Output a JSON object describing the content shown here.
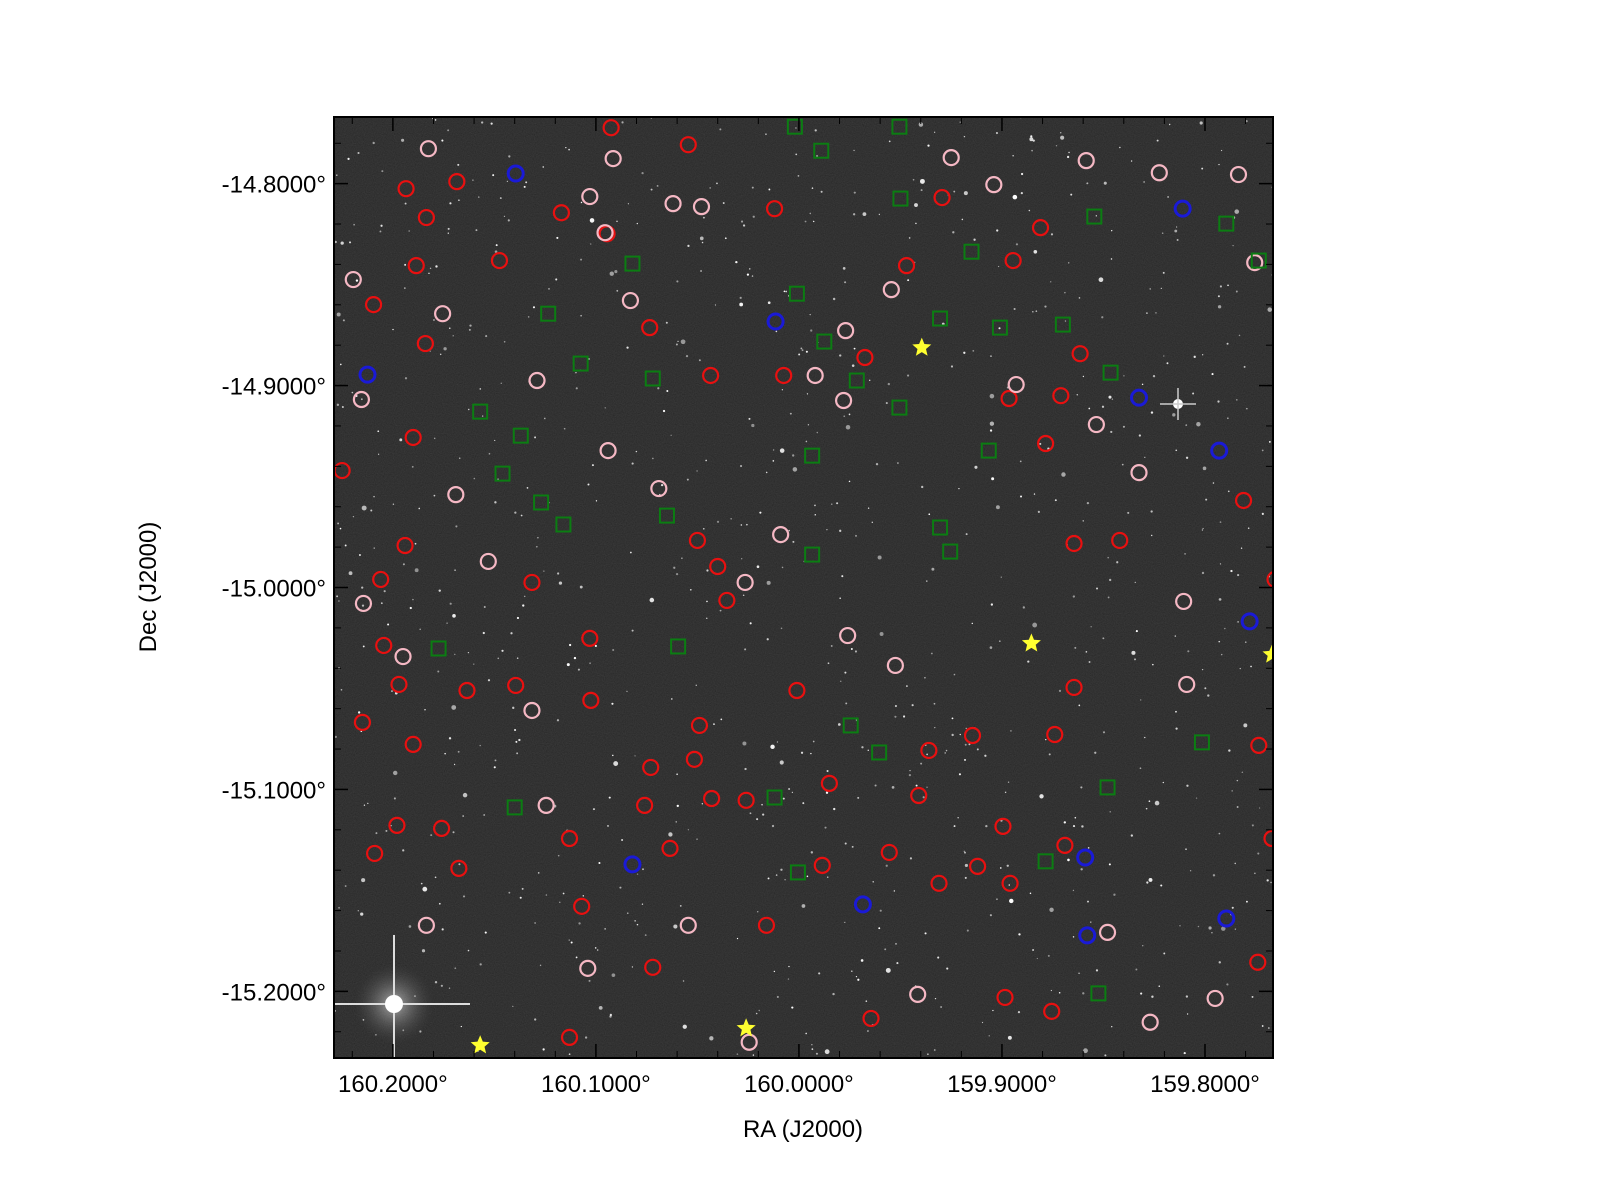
{
  "chart_data": {
    "type": "scatter",
    "xlabel": "RA (J2000)",
    "ylabel": "Dec (J2000)",
    "xlim": [
      160.229,
      159.7665
    ],
    "ylim": [
      -15.233,
      -14.767
    ],
    "xticks": [
      {
        "value": 160.2,
        "label": "160.2000°"
      },
      {
        "value": 160.1,
        "label": "160.1000°"
      },
      {
        "value": 160.0,
        "label": "160.0000°"
      },
      {
        "value": 159.9,
        "label": "159.9000°"
      },
      {
        "value": 159.8,
        "label": "159.8000°"
      }
    ],
    "yticks": [
      {
        "value": -14.8,
        "label": "-14.8000°"
      },
      {
        "value": -14.9,
        "label": "-14.9000°"
      },
      {
        "value": -15.0,
        "label": "-15.0000°"
      },
      {
        "value": -15.1,
        "label": "-15.1000°"
      },
      {
        "value": -15.2,
        "label": "-15.2000°"
      }
    ],
    "xminorticks": [
      160.22,
      160.18,
      160.16,
      160.14,
      160.12,
      160.08,
      160.06,
      160.04,
      160.02,
      159.98,
      159.96,
      159.94,
      159.92,
      159.88,
      159.86,
      159.84,
      159.82,
      159.78
    ],
    "yminorticks": [
      -14.78,
      -14.82,
      -14.84,
      -14.86,
      -14.88,
      -14.92,
      -14.94,
      -14.96,
      -14.98,
      -15.02,
      -15.04,
      -15.06,
      -15.08,
      -15.12,
      -15.14,
      -15.16,
      -15.18,
      -15.22
    ],
    "series": [
      {
        "marker": "circle",
        "color": "#e81010",
        "x": [
          160.1935,
          160.1835,
          160.1685,
          160.1475,
          160.1885,
          160.2095,
          160.184,
          160.19,
          160.225,
          160.194,
          160.206,
          160.2045,
          160.197,
          160.215,
          160.19,
          160.198,
          160.209,
          160.1675,
          160.176,
          160.1635,
          160.1395,
          160.1315,
          160.103,
          160.1025,
          160.113,
          160.107,
          160.113,
          160.0925,
          160.0545,
          160.117,
          160.0945,
          160.0735,
          160.0435,
          160.0075,
          160.012,
          159.9675,
          159.947,
          159.9295,
          159.881,
          159.8945,
          159.8615,
          159.8965,
          159.871,
          159.842,
          159.781,
          159.7655,
          159.7735,
          159.767,
          159.774,
          159.8645,
          159.874,
          159.8995,
          159.896,
          159.8985,
          159.8755,
          159.936,
          159.941,
          159.9555,
          159.931,
          159.9645,
          160.026,
          160.043,
          160.001,
          159.985,
          159.9885,
          160.016,
          160.073,
          160.076,
          160.0635,
          160.072,
          160.05,
          160.04,
          160.0355,
          160.049,
          160.0515,
          159.9145,
          159.912,
          159.869,
          159.8785,
          159.8645
        ],
        "y": [
          -14.8025,
          -14.8168,
          -14.799,
          -14.8381,
          -14.8406,
          -14.8599,
          -14.8792,
          -14.9257,
          -14.9421,
          -14.9792,
          -14.996,
          -15.0287,
          -15.048,
          -15.0668,
          -15.0777,
          -15.1178,
          -15.1317,
          -15.1391,
          -15.1193,
          -15.051,
          -15.0485,
          -14.9975,
          -15.0252,
          -15.0559,
          -15.1243,
          -15.1579,
          -15.2228,
          -14.7723,
          -14.7807,
          -14.8144,
          -14.8248,
          -14.8713,
          -14.895,
          -14.895,
          -14.8124,
          -14.8861,
          -14.8406,
          -14.8069,
          -14.8218,
          -14.8381,
          -14.8842,
          -14.9064,
          -14.905,
          -14.9767,
          -14.9569,
          -14.996,
          -15.0782,
          -15.1243,
          -15.1856,
          -15.0495,
          -15.0728,
          -15.1183,
          -15.1465,
          -15.203,
          -15.2099,
          -15.0807,
          -15.103,
          -15.1312,
          -15.1465,
          -15.2134,
          -15.1054,
          -15.1045,
          -15.051,
          -15.097,
          -15.1376,
          -15.1673,
          -15.0891,
          -15.1079,
          -15.1292,
          -15.1881,
          -14.9767,
          -14.9896,
          -15.0064,
          -15.0683,
          -15.0851,
          -15.0733,
          -15.1381,
          -15.1277,
          -14.9287,
          -14.9782
        ]
      },
      {
        "marker": "circle",
        "color": "#f5b8c4",
        "x": [
          160.2195,
          160.1825,
          160.1755,
          160.2155,
          160.169,
          160.153,
          160.2145,
          160.195,
          160.1835,
          160.129,
          160.0955,
          160.103,
          160.0915,
          160.062,
          160.048,
          160.083,
          160.094,
          160.069,
          160.1315,
          160.1245,
          160.104,
          160.0545,
          160.0245,
          160.0265,
          160.009,
          159.992,
          159.978,
          159.977,
          159.9545,
          159.925,
          159.904,
          159.8585,
          159.8225,
          159.7835,
          159.7755,
          159.893,
          159.8535,
          159.8325,
          159.8105,
          159.809,
          159.795,
          159.827,
          159.848,
          159.976,
          159.9525,
          159.9415
        ],
        "y": [
          -14.8475,
          -14.7827,
          -14.8644,
          -14.9069,
          -14.954,
          -14.9871,
          -15.0079,
          -15.0342,
          -15.1673,
          -14.8975,
          -14.8243,
          -14.8064,
          -14.7876,
          -14.8099,
          -14.8114,
          -14.8579,
          -14.9322,
          -14.951,
          -15.0609,
          -15.1079,
          -15.1886,
          -15.1673,
          -15.2252,
          -14.9975,
          -14.9738,
          -14.895,
          -14.9074,
          -14.8728,
          -14.8525,
          -14.7871,
          -14.8005,
          -14.7886,
          -14.7946,
          -14.7955,
          -14.8391,
          -14.8995,
          -14.9193,
          -14.9431,
          -15.0069,
          -15.048,
          -15.2035,
          -15.2153,
          -15.1708,
          -15.0238,
          -15.0386,
          -15.2015
        ]
      },
      {
        "marker": "circle",
        "color": "#1a1ad6",
        "x": [
          160.1395,
          160.0115,
          160.2125,
          159.811,
          159.8325,
          159.793,
          159.778,
          160.082,
          159.859,
          159.9685,
          159.7895,
          159.858
        ],
        "y": [
          -14.795,
          -14.8683,
          -14.8946,
          -14.8124,
          -14.906,
          -14.9322,
          -15.0168,
          -15.1371,
          -15.1337,
          -15.1569,
          -15.1639,
          -15.1723
        ]
      },
      {
        "marker": "square",
        "color": "#0b7d12",
        "x": [
          160.002,
          159.989,
          159.9505,
          159.95,
          159.8545,
          159.7895,
          160.082,
          159.915,
          159.7735,
          160.001,
          160.1235,
          159.9305,
          159.901,
          159.87,
          159.9875,
          160.1075,
          160.072,
          159.9715,
          159.8465,
          159.9505,
          160.157,
          160.137,
          159.9065,
          159.9935,
          160.146,
          160.127,
          160.065,
          160.116,
          159.9305,
          159.9255,
          159.9935,
          160.1775,
          160.0595,
          159.9745,
          159.9605,
          159.8015,
          159.848,
          160.012,
          160.14,
          160.0005,
          159.8785,
          159.8525
        ],
        "y": [
          -14.7718,
          -14.7837,
          -14.7718,
          -14.8074,
          -14.8163,
          -14.8198,
          -14.8396,
          -14.8337,
          -14.8381,
          -14.8545,
          -14.8644,
          -14.8668,
          -14.8713,
          -14.8698,
          -14.8782,
          -14.8891,
          -14.8965,
          -14.8975,
          -14.8936,
          -14.9109,
          -14.9129,
          -14.9248,
          -14.9322,
          -14.9347,
          -14.9436,
          -14.9579,
          -14.9644,
          -14.9688,
          -14.9703,
          -14.9822,
          -14.9837,
          -15.0302,
          -15.0292,
          -15.0683,
          -15.0817,
          -15.0767,
          -15.099,
          -15.104,
          -15.1089,
          -15.1411,
          -15.1356,
          -15.201
        ]
      },
      {
        "marker": "star",
        "color": "#ffff30",
        "x": [
          159.9395,
          159.8855,
          159.767,
          160.026,
          160.157
        ],
        "y": [
          -14.8812,
          -15.0277,
          -15.0332,
          -15.2183,
          -15.2267
        ]
      }
    ]
  }
}
